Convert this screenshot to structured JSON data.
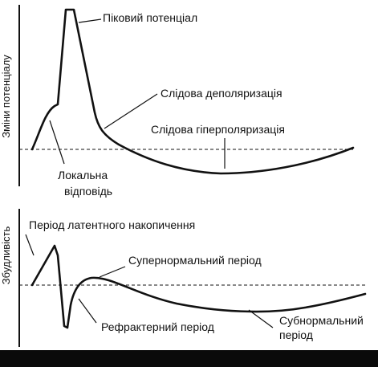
{
  "top_panel": {
    "y_axis_label": "Зміни потенціалу",
    "labels": {
      "spike": "Піковий потенціал",
      "trace_depol": "Слідова деполяризація",
      "trace_hyperpol": "Слідова гіперполяризація",
      "local_response_line1": "Локальна",
      "local_response_line2": "відповідь"
    }
  },
  "bottom_panel": {
    "y_axis_label": "Збудливість",
    "labels": {
      "latent": "Період латентного накопичення",
      "supernormal": "Супернормальний період",
      "refractory": "Рефрактерний період",
      "subnormal_line1": "Субнормальний",
      "subnormal_line2": "період"
    }
  },
  "colors": {
    "ink": "#111111",
    "background": "#ffffff",
    "bottom_bar": "#0a0a0a"
  }
}
